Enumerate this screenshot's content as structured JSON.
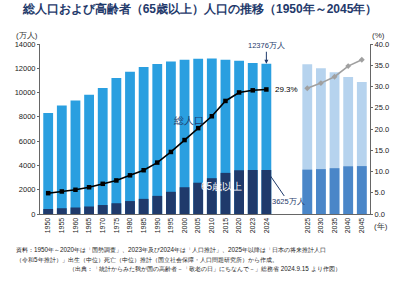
{
  "chart_data": {
    "type": "bar",
    "title": "総人口および高齢者（65歳以上）人口の推移（1950年～2045年）",
    "ylabel": "(万人)",
    "y2label": "(%)",
    "xlabel": "(年)",
    "annotations": [
      "資料：1950年～2020年は「国勢調査」、2023年及び2024年は「人口推計」、2025年以降は「日本の将来推計人口",
      "（令和5年推計）」出生（中位）死亡（中位）推計（国立社会保障・人口問題研究所）から作成。",
      "（出典：「統計からみた我が国の高齢者－「敬老の日」にちなんで－」総務省 2024.9.15 より作図）"
    ],
    "categories": [
      "1950",
      "1955",
      "1960",
      "1965",
      "1970",
      "1975",
      "1980",
      "1985",
      "1990",
      "1995",
      "2000",
      "2005",
      "2010",
      "2015",
      "2020",
      "2023",
      "2024",
      null,
      null,
      "2025",
      "2030",
      "2035",
      "2040",
      "2045"
    ],
    "ylim": [
      0,
      14000
    ],
    "yticks": [
      0,
      2000,
      4000,
      6000,
      8000,
      10000,
      12000,
      14000
    ],
    "y2lim": [
      0,
      40
    ],
    "y2ticks": [
      {
        "value": 0,
        "label": "0.0"
      },
      {
        "value": 5,
        "label": "5.0"
      },
      {
        "value": 10,
        "label": "10.0"
      },
      {
        "value": 15,
        "label": "15.0"
      },
      {
        "value": 20,
        "label": "20.0"
      },
      {
        "value": 25,
        "label": "25.0"
      },
      {
        "value": 30,
        "label": "30.0"
      },
      {
        "value": 35,
        "label": "35.0"
      },
      {
        "value": 40,
        "label": "40.0"
      }
    ],
    "grid": false,
    "series": [
      {
        "name": "総人口",
        "type": "bar",
        "values": [
          8320,
          8928,
          9342,
          9828,
          10372,
          11194,
          11706,
          12105,
          12361,
          12557,
          12693,
          12777,
          12806,
          12709,
          12615,
          12435,
          12376,
          null,
          null,
          12326,
          12012,
          11664,
          11284,
          10880
        ],
        "value_labels": [
          null,
          null,
          null,
          null,
          null,
          null,
          null,
          null,
          null,
          null,
          null,
          null,
          null,
          null,
          null,
          null,
          "12376万人",
          null,
          null,
          null,
          null,
          null,
          null,
          null
        ],
        "colors": [
          "#2a9fe0",
          "#2a9fe0",
          "#2a9fe0",
          "#2a9fe0",
          "#2a9fe0",
          "#2a9fe0",
          "#2a9fe0",
          "#2a9fe0",
          "#2a9fe0",
          "#2a9fe0",
          "#2a9fe0",
          "#2a9fe0",
          "#2a9fe0",
          "#2a9fe0",
          "#2a9fe0",
          "#2a9fe0",
          "#2a9fe0",
          null,
          null,
          "#b6d3ee",
          "#b6d3ee",
          "#b6d3ee",
          "#b6d3ee",
          "#b6d3ee"
        ]
      },
      {
        "name": "65歳以上",
        "type": "bar",
        "values": [
          411,
          475,
          535,
          618,
          739,
          887,
          1065,
          1247,
          1493,
          1828,
          2204,
          2576,
          2948,
          3387,
          3603,
          3623,
          3625,
          null,
          null,
          3653,
          3696,
          3773,
          3928,
          3945
        ],
        "value_labels": [
          null,
          null,
          null,
          null,
          null,
          null,
          null,
          null,
          null,
          null,
          null,
          null,
          null,
          null,
          null,
          null,
          "3625万人",
          null,
          null,
          null,
          null,
          null,
          null,
          null
        ],
        "colors": [
          "#1f3a6b",
          "#1f3a6b",
          "#1f3a6b",
          "#1f3a6b",
          "#1f3a6b",
          "#1f3a6b",
          "#1f3a6b",
          "#1f3a6b",
          "#1f3a6b",
          "#1f3a6b",
          "#1f3a6b",
          "#1f3a6b",
          "#1f3a6b",
          "#1f3a6b",
          "#1f3a6b",
          "#1f3a6b",
          "#1f3a6b",
          null,
          null,
          "#4a86c8",
          "#4a86c8",
          "#4a86c8",
          "#4a86c8",
          "#4a86c8"
        ]
      },
      {
        "type": "line",
        "axis": "y2",
        "color": "#000000",
        "marker": "square",
        "line_style": "solid",
        "values": [
          4.9,
          5.3,
          5.7,
          6.3,
          7.1,
          7.9,
          9.1,
          10.3,
          12.1,
          14.6,
          17.4,
          20.2,
          23.0,
          26.6,
          28.6,
          29.1,
          29.3,
          null,
          null,
          null,
          null,
          null,
          null,
          null
        ],
        "value_labels": [
          null,
          null,
          null,
          null,
          null,
          null,
          null,
          null,
          null,
          null,
          null,
          null,
          null,
          null,
          null,
          null,
          "29.3%",
          null,
          null,
          null,
          null,
          null,
          null,
          null
        ]
      },
      {
        "type": "line",
        "axis": "y2",
        "color": "#a0a0a0",
        "marker": "diamond",
        "line_style": "solid",
        "values": [
          null,
          null,
          null,
          null,
          null,
          null,
          null,
          null,
          null,
          null,
          null,
          null,
          null,
          null,
          null,
          null,
          null,
          null,
          null,
          29.6,
          30.8,
          32.3,
          34.8,
          36.3
        ]
      }
    ]
  }
}
